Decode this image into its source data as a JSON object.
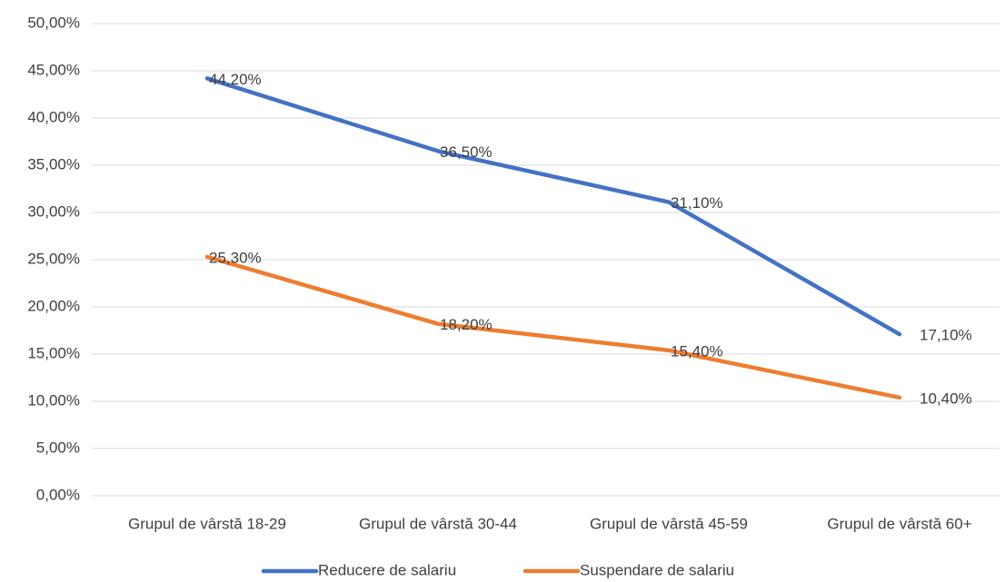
{
  "chart_data": {
    "type": "line",
    "categories": [
      "Grupul de vârstă 18-29",
      "Grupul de vârstă 30-44",
      "Grupul de vârstă 45-59",
      "Grupul de vârstă 60+"
    ],
    "series": [
      {
        "name": "Reducere de salariu",
        "color": "#4472c4",
        "values": [
          44.2,
          36.5,
          31.1,
          17.1
        ],
        "value_labels": [
          "44,20%",
          "36,50%",
          "31,10%",
          "17,10%"
        ]
      },
      {
        "name": "Suspendare de salariu",
        "color": "#ed7d31",
        "values": [
          25.3,
          18.2,
          15.4,
          10.4
        ],
        "value_labels": [
          "25,30%",
          "18,20%",
          "15,40%",
          "10,40%"
        ]
      }
    ],
    "ylim": [
      0,
      50
    ],
    "yticks": [
      {
        "value": 0,
        "label": "0,00%"
      },
      {
        "value": 5,
        "label": "5,00%"
      },
      {
        "value": 10,
        "label": "10,00%"
      },
      {
        "value": 15,
        "label": "15,00%"
      },
      {
        "value": 20,
        "label": "20,00%"
      },
      {
        "value": 25,
        "label": "25,00%"
      },
      {
        "value": 30,
        "label": "30,00%"
      },
      {
        "value": 35,
        "label": "35,00%"
      },
      {
        "value": 40,
        "label": "40,00%"
      },
      {
        "value": 45,
        "label": "45,00%"
      },
      {
        "value": 50,
        "label": "50,00%"
      }
    ],
    "grid": true,
    "legend": "bottom"
  }
}
